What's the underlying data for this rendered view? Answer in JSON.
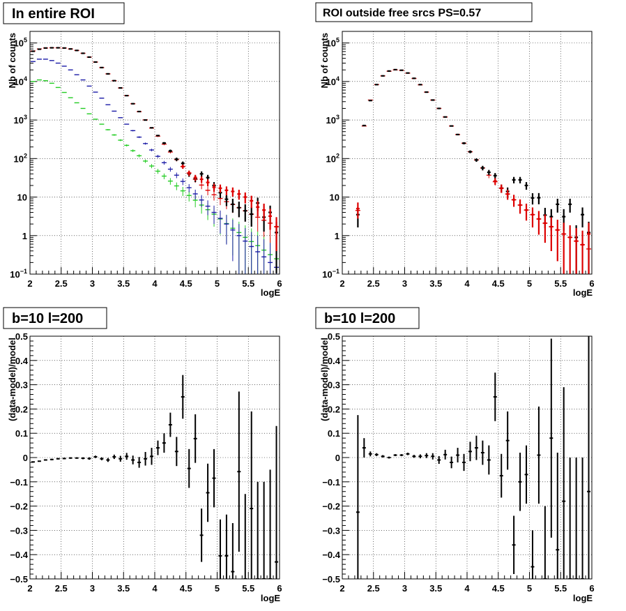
{
  "chart_data": [
    {
      "type": "scatter",
      "title": "In entire ROI",
      "title_size": "big",
      "xlabel": "logE",
      "ylabel": "Nb of counts",
      "xlim": [
        2,
        6
      ],
      "ylim": [
        0.1,
        200000
      ],
      "log_y": true,
      "grid": true,
      "x_ticks": [
        2,
        2.5,
        3,
        3.5,
        4,
        4.5,
        5,
        5.5,
        6
      ],
      "x_tick_labels": [
        "2",
        "2.5",
        "3",
        "3.5",
        "4",
        "4.5",
        "5",
        "5.5",
        "6"
      ],
      "y_ticks": [
        0.1,
        1,
        10,
        100,
        1000,
        10000,
        100000
      ],
      "y_tick_labels": [
        {
          "base": "10",
          "exp": "−1"
        },
        {
          "base": "1",
          "exp": ""
        },
        {
          "base": "10",
          "exp": ""
        },
        {
          "base": "10",
          "exp": "2"
        },
        {
          "base": "10",
          "exp": "3"
        },
        {
          "base": "10",
          "exp": "4"
        },
        {
          "base": "10",
          "exp": "5"
        }
      ],
      "series": [
        {
          "color": "#22cc22",
          "style": "bar",
          "x": [
            2.05,
            2.15,
            2.25,
            2.35,
            2.45,
            2.55,
            2.65,
            2.75,
            2.85,
            2.95,
            3.05,
            3.15,
            3.25,
            3.35,
            3.45,
            3.55,
            3.65,
            3.75,
            3.85,
            3.95,
            4.05,
            4.15,
            4.25,
            4.35,
            4.45,
            4.55,
            4.65,
            4.75,
            4.85,
            4.95,
            5.05,
            5.15,
            5.25,
            5.35,
            5.45,
            5.55,
            5.65,
            5.75,
            5.85,
            5.95
          ],
          "y": [
            10000,
            11000,
            10500,
            9000,
            7000,
            5200,
            3800,
            2800,
            2000,
            1450,
            1050,
            780,
            560,
            410,
            300,
            220,
            160,
            118,
            86,
            64,
            47,
            35,
            26,
            19.5,
            14.5,
            11,
            8.3,
            6.2,
            4.7,
            3.6,
            2.7,
            2.05,
            1.55,
            1.2,
            0.9,
            0.7,
            0.55,
            0.42,
            0.32,
            0.25
          ]
        },
        {
          "color": "#1a1aa6",
          "style": "bar",
          "x": [
            2.05,
            2.15,
            2.25,
            2.35,
            2.45,
            2.55,
            2.65,
            2.75,
            2.85,
            2.95,
            3.05,
            3.15,
            3.25,
            3.35,
            3.45,
            3.55,
            3.65,
            3.75,
            3.85,
            3.95,
            4.05,
            4.15,
            4.25,
            4.35,
            4.45,
            4.55,
            4.65,
            4.75,
            4.85,
            4.95,
            5.05,
            5.15,
            5.25,
            5.35,
            5.45,
            5.55,
            5.65,
            5.75,
            5.85,
            5.95
          ],
          "y": [
            33000,
            38000,
            38000,
            35000,
            30000,
            25000,
            20000,
            15000,
            11000,
            7600,
            5300,
            3700,
            2500,
            1700,
            1150,
            780,
            530,
            360,
            245,
            167,
            114,
            78,
            53,
            37,
            25.5,
            17.5,
            12.1,
            8.4,
            5.8,
            4.0,
            2.8,
            2.0,
            1.4,
            1.0,
            0.72,
            0.52,
            0.38,
            0.28,
            0.2,
            0.15
          ]
        },
        {
          "color": "#dd0000",
          "style": "bar",
          "x": [
            2.05,
            2.15,
            2.25,
            2.35,
            2.45,
            2.55,
            2.65,
            2.75,
            2.85,
            2.95,
            3.05,
            3.15,
            3.25,
            3.35,
            3.45,
            3.55,
            3.65,
            3.75,
            3.85,
            3.95,
            4.05,
            4.15,
            4.25,
            4.35,
            4.45,
            4.55,
            4.65,
            4.75,
            4.85,
            4.95,
            5.05,
            5.15,
            5.25,
            5.35,
            5.45,
            5.55,
            5.65,
            5.75,
            5.85,
            5.95
          ],
          "y": [
            62000,
            70000,
            74000,
            75000,
            75000,
            74000,
            70000,
            64000,
            54000,
            43000,
            32000,
            23000,
            15800,
            10500,
            6800,
            4300,
            2650,
            1650,
            1010,
            620,
            382,
            237,
            148,
            94,
            62,
            42,
            29,
            20.5,
            15,
            11.5,
            9.2,
            7.6,
            6.4,
            5.3,
            4.4,
            3.6,
            3.0,
            2.5,
            2.1,
            1.7
          ]
        },
        {
          "color": "#000000",
          "style": "data",
          "x": [
            2.05,
            2.15,
            2.25,
            2.35,
            2.45,
            2.55,
            2.65,
            2.75,
            2.85,
            2.95,
            3.05,
            3.15,
            3.25,
            3.35,
            3.45,
            3.55,
            3.65,
            3.75,
            3.85,
            3.95,
            4.05,
            4.15,
            4.25,
            4.35,
            4.45,
            4.55,
            4.65,
            4.75,
            4.85,
            4.95,
            5.05,
            5.15,
            5.25,
            5.35,
            5.45,
            5.55,
            5.65,
            5.75,
            5.85,
            5.95
          ],
          "y": [
            61000,
            69000,
            74000,
            75000,
            75000,
            74000,
            70000,
            64000,
            54000,
            43000,
            32000,
            23000,
            15800,
            10500,
            6800,
            4300,
            2650,
            1660,
            1000,
            628,
            395,
            252,
            158,
            96,
            75,
            40,
            30,
            40,
            32,
            20,
            13,
            8.8,
            6.5,
            5.3,
            4.4,
            3.6,
            7,
            3.0,
            4.0,
            1.2
          ]
        },
        {
          "color": "#dd0000",
          "style": "data",
          "x": [
            4.45,
            4.55,
            4.65,
            4.75,
            4.85,
            4.95,
            5.05,
            5.15,
            5.25,
            5.35,
            5.45,
            5.55,
            5.65,
            5.75,
            5.85,
            5.95
          ],
          "y": [
            62,
            42,
            32,
            29,
            24,
            18,
            17,
            15,
            14,
            12,
            10,
            8,
            5.5,
            4.6,
            3.2,
            1.7
          ]
        }
      ]
    },
    {
      "type": "scatter",
      "title": "ROI outside free srcs PS=0.57",
      "title_size": "small",
      "xlabel": "logE",
      "ylabel": "Nb of counts",
      "xlim": [
        2,
        6
      ],
      "ylim": [
        0.1,
        200000
      ],
      "log_y": true,
      "grid": true,
      "x_ticks": [
        2,
        2.5,
        3,
        3.5,
        4,
        4.5,
        5,
        5.5,
        6
      ],
      "x_tick_labels": [
        "2",
        "2.5",
        "3",
        "3.5",
        "4",
        "4.5",
        "5",
        "5.5",
        "6"
      ],
      "y_ticks": [
        0.1,
        1,
        10,
        100,
        1000,
        10000,
        100000
      ],
      "y_tick_labels": [
        {
          "base": "10",
          "exp": "−1"
        },
        {
          "base": "1",
          "exp": ""
        },
        {
          "base": "10",
          "exp": ""
        },
        {
          "base": "10",
          "exp": "2"
        },
        {
          "base": "10",
          "exp": "3"
        },
        {
          "base": "10",
          "exp": "4"
        },
        {
          "base": "10",
          "exp": "5"
        }
      ],
      "series": [
        {
          "color": "#dd0000",
          "style": "bar",
          "x": [
            2.25,
            2.35,
            2.45,
            2.55,
            2.65,
            2.75,
            2.85,
            2.95,
            3.05,
            3.15,
            3.25,
            3.35,
            3.45,
            3.55,
            3.65,
            3.75,
            3.85,
            3.95,
            4.05,
            4.15,
            4.25,
            4.35,
            4.45,
            4.55,
            4.65,
            4.75,
            4.85,
            4.95,
            5.05,
            5.15,
            5.25,
            5.35,
            5.45,
            5.55,
            5.65,
            5.75,
            5.85,
            5.95
          ],
          "y": [
            4.5,
            700,
            3300,
            8300,
            14000,
            18500,
            20000,
            19500,
            16500,
            12000,
            8200,
            5300,
            3300,
            2000,
            1200,
            700,
            420,
            250,
            150,
            92,
            57,
            37,
            25,
            17,
            12,
            8.5,
            6.2,
            4.6,
            3.5,
            2.7,
            2.1,
            1.7,
            1.4,
            1.1,
            0.9,
            0.72,
            0.58,
            0.45
          ]
        },
        {
          "color": "#000000",
          "style": "data",
          "x": [
            2.25,
            2.35,
            2.45,
            2.55,
            2.65,
            2.75,
            2.85,
            2.95,
            3.05,
            3.15,
            3.25,
            3.35,
            3.45,
            3.55,
            3.65,
            3.75,
            3.85,
            3.95,
            4.05,
            4.15,
            4.25,
            4.35,
            4.45,
            4.55,
            4.65,
            4.75,
            4.85,
            4.95,
            5.05,
            5.15,
            5.25,
            5.35,
            5.45,
            5.55,
            5.65,
            5.75,
            5.85,
            5.95
          ],
          "y": [
            3.5,
            720,
            3200,
            8300,
            14000,
            18700,
            20300,
            19600,
            16600,
            12100,
            8300,
            5300,
            3300,
            2000,
            1200,
            700,
            420,
            250,
            150,
            92,
            57,
            44,
            36,
            17,
            14,
            28,
            28,
            20,
            9.5,
            9.6,
            3.4,
            3.1,
            6.5,
            3.1,
            6.5,
            0.9,
            3.5,
            1.2
          ]
        },
        {
          "color": "#dd0000",
          "style": "data",
          "x": [
            2.25,
            4.45,
            4.55,
            4.65,
            4.75,
            4.85,
            4.95,
            5.05,
            5.15,
            5.25,
            5.35,
            5.45,
            5.55,
            5.65,
            5.75,
            5.85,
            5.95
          ],
          "y": [
            5,
            26,
            17,
            12,
            8.5,
            6.2,
            4.6,
            3.5,
            2.7,
            2.1,
            1.7,
            1.4,
            1.1,
            0.9,
            0.72,
            0.58,
            1.1
          ]
        }
      ]
    },
    {
      "type": "scatter",
      "title": "b=10 l=200",
      "title_size": "big",
      "xlabel": "logE",
      "ylabel": "(data-model)/model",
      "xlim": [
        2,
        6
      ],
      "ylim": [
        -0.5,
        0.5
      ],
      "log_y": false,
      "grid": true,
      "x_ticks": [
        2,
        2.5,
        3,
        3.5,
        4,
        4.5,
        5,
        5.5,
        6
      ],
      "x_tick_labels": [
        "2",
        "2.5",
        "3",
        "3.5",
        "4",
        "4.5",
        "5",
        "5.5",
        "6"
      ],
      "y_ticks": [
        -0.5,
        -0.4,
        -0.3,
        -0.2,
        -0.1,
        0,
        0.1,
        0.2,
        0.3,
        0.4,
        0.5
      ],
      "y_tick_labels": [
        "−0.5",
        "−0.4",
        "−0.3",
        "−0.2",
        "−0.1",
        "0",
        "0.1",
        "0.2",
        "0.3",
        "0.4",
        "0.5"
      ],
      "series": [
        {
          "color": "#000000",
          "style": "residual",
          "x": [
            2.05,
            2.15,
            2.25,
            2.35,
            2.45,
            2.55,
            2.65,
            2.75,
            2.85,
            2.95,
            3.05,
            3.15,
            3.25,
            3.35,
            3.45,
            3.55,
            3.65,
            3.75,
            3.85,
            3.95,
            4.05,
            4.15,
            4.25,
            4.35,
            4.45,
            4.55,
            4.65,
            4.75,
            4.85,
            4.95,
            5.05,
            5.15,
            5.25,
            5.35,
            5.45,
            5.55,
            5.65,
            5.75,
            5.85,
            5.95
          ],
          "y": [
            -0.018,
            -0.015,
            -0.01,
            -0.008,
            -0.005,
            -0.004,
            -0.002,
            -0.002,
            -0.003,
            -0.004,
            0.003,
            -0.005,
            -0.01,
            0.003,
            -0.005,
            0.005,
            -0.01,
            -0.02,
            -0.005,
            0.005,
            0.04,
            0.06,
            0.135,
            0.025,
            0.25,
            -0.045,
            0.078,
            -0.32,
            -0.145,
            -0.085,
            -0.405,
            -0.405,
            -0.47,
            -0.058,
            -0.5,
            -0.21,
            -0.5,
            -0.5,
            -0.5,
            -0.43
          ],
          "err": [
            0.002,
            0.002,
            0.003,
            0.003,
            0.003,
            0.003,
            0.003,
            0.003,
            0.004,
            0.005,
            0.005,
            0.006,
            0.008,
            0.009,
            0.012,
            0.014,
            0.018,
            0.022,
            0.028,
            0.035,
            0.03,
            0.04,
            0.05,
            0.06,
            0.09,
            0.08,
            0.1,
            0.11,
            0.12,
            0.12,
            0.15,
            0.17,
            0.2,
            0.33,
            0.35,
            0.4,
            0.4,
            0.4,
            0.45,
            0.56
          ]
        }
      ]
    },
    {
      "type": "scatter",
      "title": "b=10 l=200",
      "title_size": "big",
      "xlabel": "logE",
      "ylabel": "(data-model)/model",
      "xlim": [
        2,
        6
      ],
      "ylim": [
        -0.5,
        0.5
      ],
      "log_y": false,
      "grid": true,
      "x_ticks": [
        2,
        2.5,
        3,
        3.5,
        4,
        4.5,
        5,
        5.5,
        6
      ],
      "x_tick_labels": [
        "2",
        "2.5",
        "3",
        "3.5",
        "4",
        "4.5",
        "5",
        "5.5",
        "6"
      ],
      "y_ticks": [
        -0.5,
        -0.4,
        -0.3,
        -0.2,
        -0.1,
        0,
        0.1,
        0.2,
        0.3,
        0.4,
        0.5
      ],
      "y_tick_labels": [
        "−0.5",
        "−0.4",
        "−0.3",
        "−0.2",
        "−0.1",
        "0",
        "0.1",
        "0.2",
        "0.3",
        "0.4",
        "0.5"
      ],
      "series": [
        {
          "color": "#000000",
          "style": "residual",
          "x": [
            2.25,
            2.35,
            2.45,
            2.55,
            2.65,
            2.75,
            2.85,
            2.95,
            3.05,
            3.15,
            3.25,
            3.35,
            3.45,
            3.55,
            3.65,
            3.75,
            3.85,
            3.95,
            4.05,
            4.15,
            4.25,
            4.35,
            4.45,
            4.55,
            4.65,
            4.75,
            4.85,
            4.95,
            5.05,
            5.15,
            5.25,
            5.35,
            5.45,
            5.55,
            5.65,
            5.75,
            5.85,
            5.95
          ],
          "y": [
            -0.225,
            0.04,
            0.015,
            0.012,
            0.005,
            0.0,
            0.01,
            0.01,
            0.015,
            0.005,
            0.005,
            0.008,
            0.005,
            -0.01,
            0.012,
            -0.02,
            0.01,
            -0.02,
            0.025,
            0.04,
            0.02,
            -0.01,
            0.25,
            -0.075,
            0.07,
            -0.36,
            -0.1,
            -0.07,
            -0.45,
            0.01,
            -0.5,
            0.08,
            -0.38,
            -0.18,
            -0.5,
            -0.5,
            -0.5,
            -0.14
          ],
          "err": [
            0.4,
            0.04,
            0.01,
            0.006,
            0.005,
            0.004,
            0.004,
            0.004,
            0.005,
            0.006,
            0.008,
            0.01,
            0.013,
            0.016,
            0.02,
            0.024,
            0.03,
            0.035,
            0.04,
            0.05,
            0.05,
            0.06,
            0.1,
            0.09,
            0.12,
            0.12,
            0.12,
            0.12,
            0.15,
            0.2,
            0.3,
            0.41,
            0.4,
            0.47,
            0.5,
            0.5,
            0.5,
            0.64
          ]
        }
      ]
    }
  ]
}
